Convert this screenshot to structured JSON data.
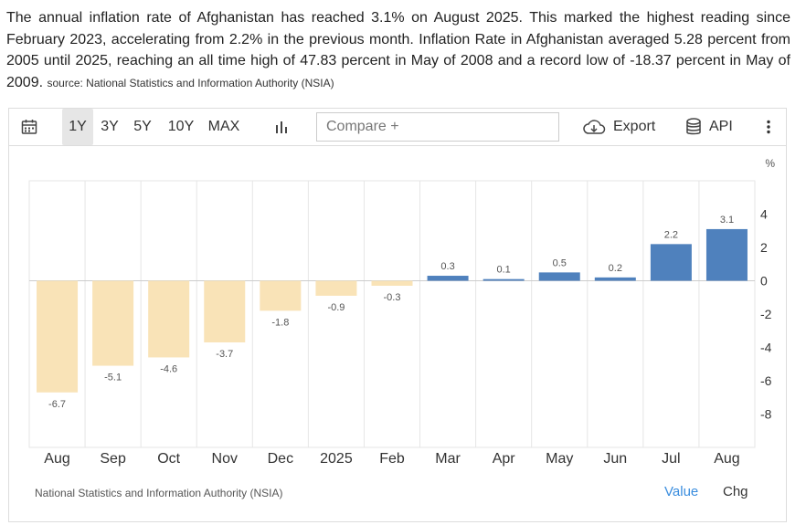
{
  "description": {
    "text": "The annual inflation rate of Afghanistan has reached 3.1% on August 2025. This marked the highest reading since February 2023, accelerating from 2.2% in the previous month. Inflation Rate in Afghanistan averaged 5.28 percent from 2005 until 2025, reaching an all time high of 47.83 percent in May of 2008 and a record low of -18.37 percent in May of 2009.",
    "source": "source: National Statistics and Information Authority (NSIA)"
  },
  "toolbar": {
    "calendar_icon": "calendar-icon",
    "ranges": [
      "1Y",
      "3Y",
      "5Y",
      "10Y",
      "MAX"
    ],
    "active_range": "1Y",
    "chart_type_icon": "bar-chart-icon",
    "compare_placeholder": "Compare +",
    "export_icon": "cloud-download-icon",
    "export_label": "Export",
    "api_icon": "database-icon",
    "api_label": "API",
    "more_icon": "vertical-ellipsis-icon"
  },
  "chart_data": {
    "type": "bar",
    "categories": [
      "Aug",
      "Sep",
      "Oct",
      "Nov",
      "Dec",
      "2025",
      "Feb",
      "Mar",
      "Apr",
      "May",
      "Jun",
      "Jul",
      "Aug"
    ],
    "values": [
      -6.7,
      -5.1,
      -4.6,
      -3.7,
      -1.8,
      -0.9,
      -0.3,
      0.3,
      0.1,
      0.5,
      0.2,
      2.2,
      3.1
    ],
    "data_labels": [
      "-6.7",
      "-5.1",
      "-4.6",
      "-3.7",
      "-1.8",
      "-0.9",
      "-0.3",
      "0.3",
      "0.1",
      "0.5",
      "0.2",
      "2.2",
      "3.1"
    ],
    "unit": "%",
    "y_ticks": [
      "4",
      "2",
      "0",
      "-2",
      "-4",
      "-6",
      "-8"
    ],
    "ylim": [
      -10,
      6
    ],
    "grid": "vertical",
    "colors": {
      "positive": "#4f81bd",
      "negative": "#f9e3b7",
      "grid": "#e6e6e6",
      "axis_zero": "#cccccc"
    }
  },
  "footer": {
    "source": "National Statistics and Information Authority (NSIA)",
    "tab_value": "Value",
    "tab_chg": "Chg",
    "active_tab_color": "#3a8dde"
  }
}
